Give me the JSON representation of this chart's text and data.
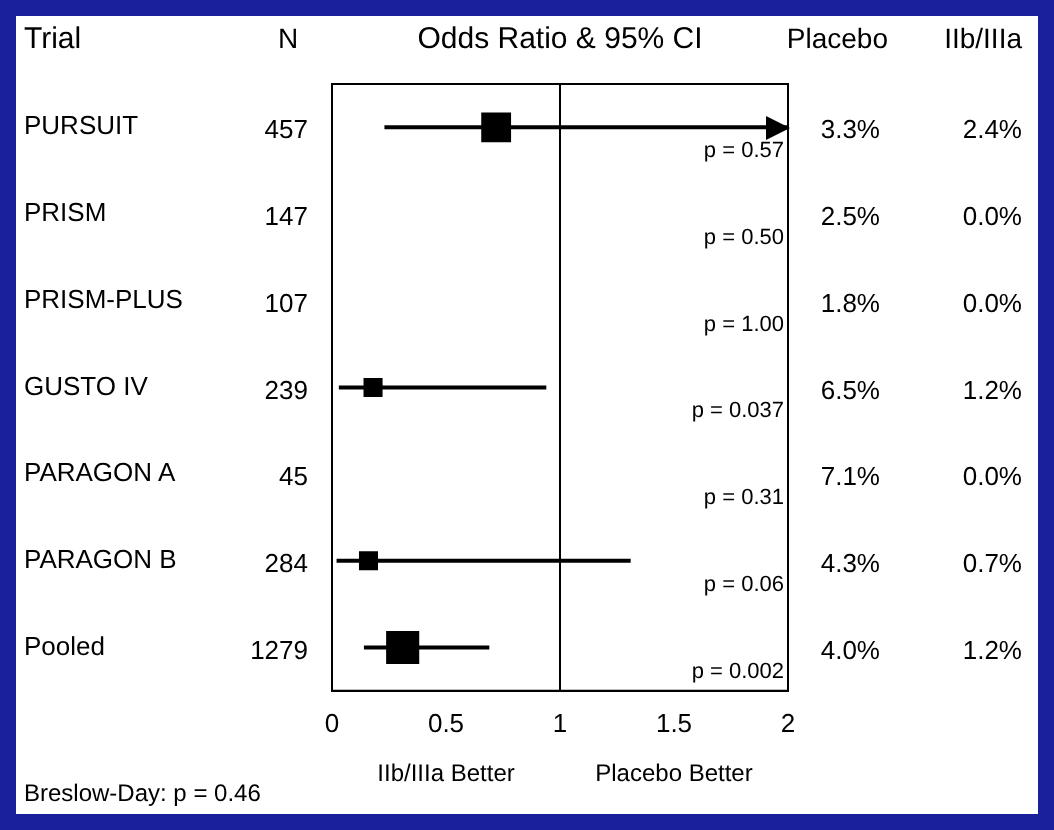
{
  "chart_data": {
    "type": "bubble",
    "title": "Odds Ratio & 95% CI",
    "ylabel": "Trial",
    "marker": "square",
    "color": "#000000",
    "grid": false,
    "categories": [
      "PURSUIT",
      "PRISM",
      "PRISM-PLUS",
      "GUSTO IV",
      "PARAGON A",
      "PARAGON B",
      "Pooled"
    ],
    "values": [
      0.72,
      null,
      null,
      0.18,
      null,
      0.16,
      0.31
    ],
    "sizes": [
      0.8,
      null,
      null,
      0.3,
      null,
      0.3,
      1
    ],
    "errors": [
      [
        0.23,
        2
      ],
      null,
      null,
      [
        0.03,
        0.94
      ],
      null,
      [
        0.02,
        1.31
      ],
      [
        0.14,
        0.69
      ]
    ],
    "orientation": "horizontal",
    "xlim": [
      0,
      2
    ],
    "xticks": [
      0,
      0.5,
      1,
      1.5,
      2
    ],
    "ref_lines": [
      {
        "axis": "x",
        "value": 1,
        "color": "#000000"
      }
    ],
    "annotations": [
      "N",
      "Placebo",
      "IIb/IIIa",
      "457",
      "p = 0.57",
      "3.3%",
      "2.4%",
      "147",
      "p = 0.50",
      "2.5%",
      "0.0%",
      "107",
      "p = 1.00",
      "1.8%",
      "0.0%",
      "239",
      "p = 0.037",
      "6.5%",
      "1.2%",
      "45",
      "p = 0.31",
      "7.1%",
      "0.0%",
      "284",
      "p = 0.06",
      "4.3%",
      "0.7%",
      "1279",
      "p = 0.002",
      "4.0%",
      "1.2%",
      "IIb/IIIa Better",
      "Placebo Better",
      "Breslow-Day: p = 0.46"
    ]
  }
}
